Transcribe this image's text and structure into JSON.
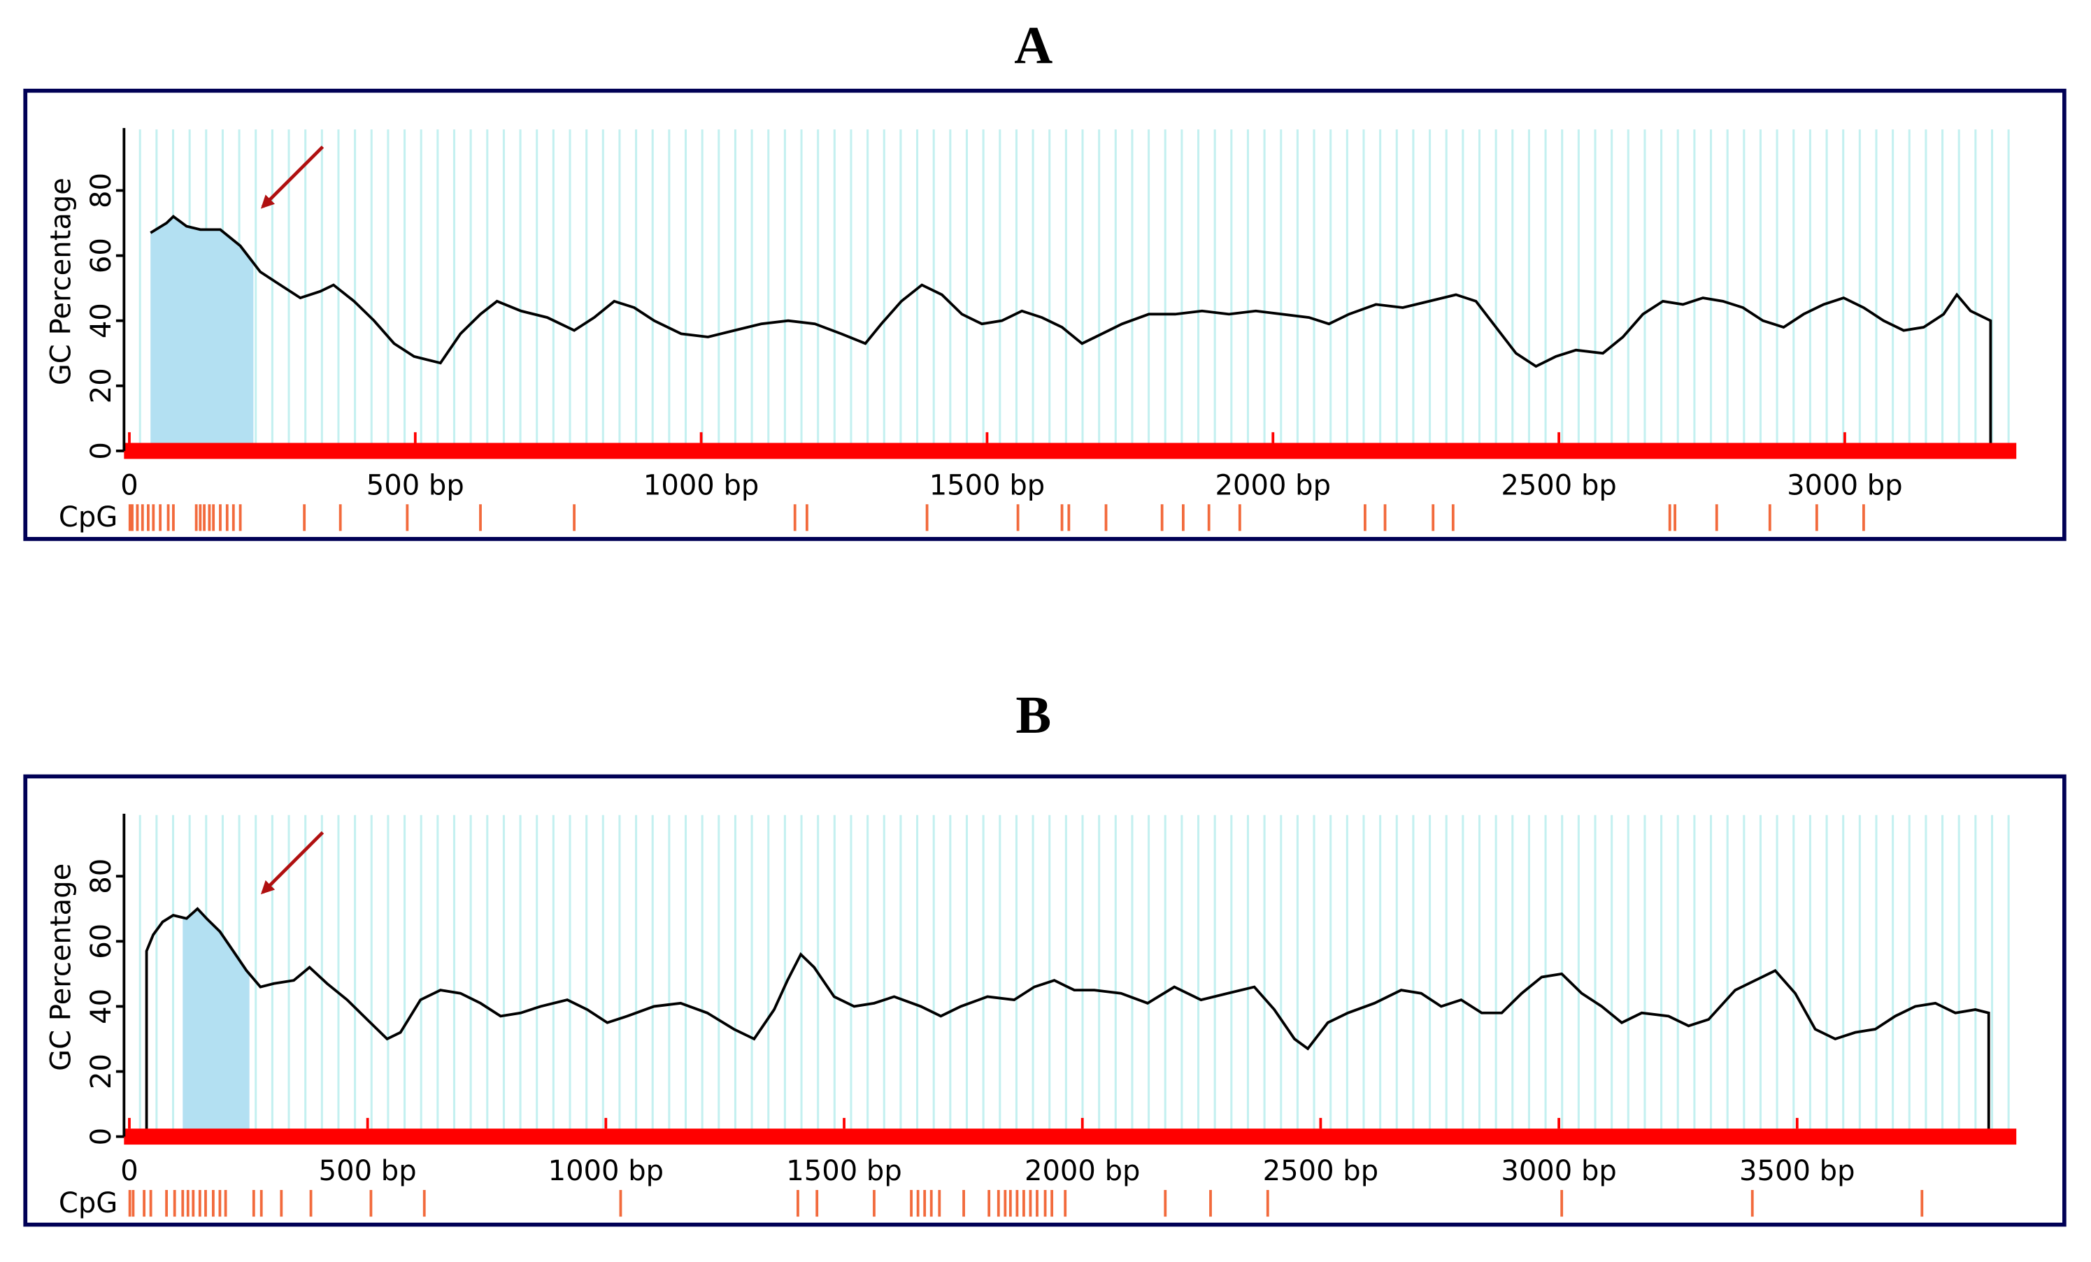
{
  "chart_data": [
    {
      "type": "line",
      "title": "A",
      "y_label": "GC Percentage",
      "cpg_label": "CpG",
      "color": "#000000",
      "axis_color": "#ff0000",
      "cpg_color": "#f26a3c",
      "shade_color": "#b3e0f2",
      "grid_color": "#c4f0f0",
      "xlim": [
        0,
        3300
      ],
      "ylim": [
        0,
        100
      ],
      "xticks": [
        0,
        {
          "value": 500,
          "label": "500 bp"
        },
        {
          "value": 1000,
          "label": "1000 bp"
        },
        {
          "value": 1500,
          "label": "1500 bp"
        },
        {
          "value": 2000,
          "label": "2000 bp"
        },
        {
          "value": 2500,
          "label": "2500 bp"
        },
        {
          "value": 3000,
          "label": "3000 bp"
        }
      ],
      "yticks": [
        0,
        20,
        40,
        60,
        80
      ],
      "shade_x": [
        37,
        217
      ],
      "x": [
        37,
        65,
        77,
        100,
        124,
        159,
        194,
        229,
        264,
        299,
        334,
        357,
        393,
        428,
        463,
        498,
        544,
        579,
        614,
        643,
        685,
        731,
        778,
        813,
        848,
        883,
        918,
        965,
        1012,
        1058,
        1105,
        1152,
        1199,
        1245,
        1287,
        1315,
        1350,
        1386,
        1421,
        1456,
        1491,
        1526,
        1561,
        1596,
        1631,
        1666,
        1701,
        1736,
        1783,
        1829,
        1876,
        1923,
        1970,
        2016,
        2063,
        2098,
        2133,
        2180,
        2227,
        2273,
        2320,
        2355,
        2390,
        2425,
        2460,
        2495,
        2530,
        2577,
        2612,
        2647,
        2682,
        2717,
        2752,
        2787,
        2822,
        2857,
        2893,
        2928,
        2963,
        2998,
        3033,
        3068,
        3103,
        3138,
        3173,
        3196,
        3220,
        3255,
        3255
      ],
      "values": [
        67,
        70,
        72,
        69,
        68,
        68,
        63,
        55,
        51,
        47,
        49,
        51,
        46,
        40,
        33,
        29,
        27,
        36,
        42,
        46,
        43,
        41,
        37,
        41,
        46,
        44,
        40,
        36,
        35,
        37,
        39,
        40,
        39,
        36,
        33,
        39,
        46,
        51,
        48,
        42,
        39,
        40,
        43,
        41,
        38,
        33,
        36,
        39,
        42,
        42,
        43,
        42,
        43,
        42,
        41,
        39,
        42,
        45,
        44,
        46,
        48,
        46,
        38,
        30,
        26,
        29,
        31,
        30,
        35,
        42,
        46,
        45,
        47,
        46,
        44,
        40,
        38,
        42,
        45,
        47,
        44,
        40,
        37,
        38,
        42,
        48,
        43,
        40,
        0
      ],
      "cpg_sites": [
        1,
        5,
        14,
        23,
        33,
        42,
        54,
        68,
        77,
        117,
        124,
        131,
        140,
        147,
        159,
        171,
        182,
        194,
        306,
        369,
        486,
        614,
        778,
        1164,
        1185,
        1395,
        1554,
        1631,
        1643,
        1708,
        1806,
        1843,
        1888,
        1942,
        2161,
        2196,
        2280,
        2315,
        2694,
        2703,
        2776,
        2869,
        2951,
        3033
      ]
    },
    {
      "type": "line",
      "title": "B",
      "y_label": "GC Percentage",
      "cpg_label": "CpG",
      "color": "#000000",
      "axis_color": "#ff0000",
      "cpg_color": "#f26a3c",
      "shade_color": "#b3e0f2",
      "grid_color": "#c4f0f0",
      "xlim": [
        0,
        3960
      ],
      "ylim": [
        0,
        100
      ],
      "xticks": [
        0,
        {
          "value": 500,
          "label": "500 bp"
        },
        {
          "value": 1000,
          "label": "1000 bp"
        },
        {
          "value": 1500,
          "label": "1500 bp"
        },
        {
          "value": 2000,
          "label": "2000 bp"
        },
        {
          "value": 2500,
          "label": "2500 bp"
        },
        {
          "value": 3000,
          "label": "3000 bp"
        },
        {
          "value": 3500,
          "label": "3500 bp"
        }
      ],
      "yticks": [
        0,
        20,
        40,
        60,
        80
      ],
      "shade_x": [
        112,
        252
      ],
      "x": [
        36,
        36,
        50,
        70,
        92,
        120,
        143,
        162,
        190,
        218,
        246,
        275,
        303,
        345,
        378,
        415,
        457,
        499,
        541,
        569,
        611,
        653,
        695,
        737,
        779,
        821,
        863,
        919,
        961,
        1003,
        1045,
        1101,
        1157,
        1213,
        1269,
        1311,
        1353,
        1381,
        1409,
        1437,
        1479,
        1521,
        1563,
        1605,
        1661,
        1703,
        1745,
        1801,
        1857,
        1899,
        1941,
        1983,
        2025,
        2081,
        2137,
        2193,
        2249,
        2305,
        2361,
        2403,
        2445,
        2473,
        2515,
        2557,
        2613,
        2669,
        2711,
        2753,
        2795,
        2838,
        2880,
        2922,
        2964,
        3006,
        3048,
        3090,
        3132,
        3174,
        3230,
        3272,
        3314,
        3370,
        3412,
        3454,
        3496,
        3538,
        3580,
        3622,
        3664,
        3706,
        3748,
        3790,
        3832,
        3874,
        3902,
        3902
      ],
      "values": [
        0,
        57,
        62,
        66,
        68,
        67,
        70,
        67,
        63,
        57,
        51,
        46,
        47,
        48,
        52,
        47,
        42,
        36,
        30,
        32,
        42,
        45,
        44,
        41,
        37,
        38,
        40,
        42,
        39,
        35,
        37,
        40,
        41,
        38,
        33,
        30,
        39,
        48,
        56,
        52,
        43,
        40,
        41,
        43,
        40,
        37,
        40,
        43,
        42,
        46,
        48,
        45,
        45,
        44,
        41,
        46,
        42,
        44,
        46,
        39,
        30,
        27,
        35,
        38,
        41,
        45,
        44,
        40,
        42,
        38,
        38,
        44,
        49,
        50,
        44,
        40,
        35,
        38,
        37,
        34,
        36,
        45,
        48,
        51,
        44,
        33,
        30,
        32,
        33,
        37,
        40,
        41,
        38,
        39,
        38,
        0
      ],
      "cpg_sites": [
        1,
        8,
        31,
        45,
        78,
        95,
        112,
        123,
        134,
        148,
        160,
        176,
        190,
        202,
        261,
        277,
        319,
        381,
        507,
        619,
        1031,
        1403,
        1443,
        1563,
        1641,
        1655,
        1669,
        1683,
        1700,
        1751,
        1804,
        1824,
        1838,
        1849,
        1863,
        1877,
        1891,
        1905,
        1922,
        1936,
        1964,
        2174,
        2269,
        2389,
        3006,
        3406,
        3762
      ]
    }
  ]
}
